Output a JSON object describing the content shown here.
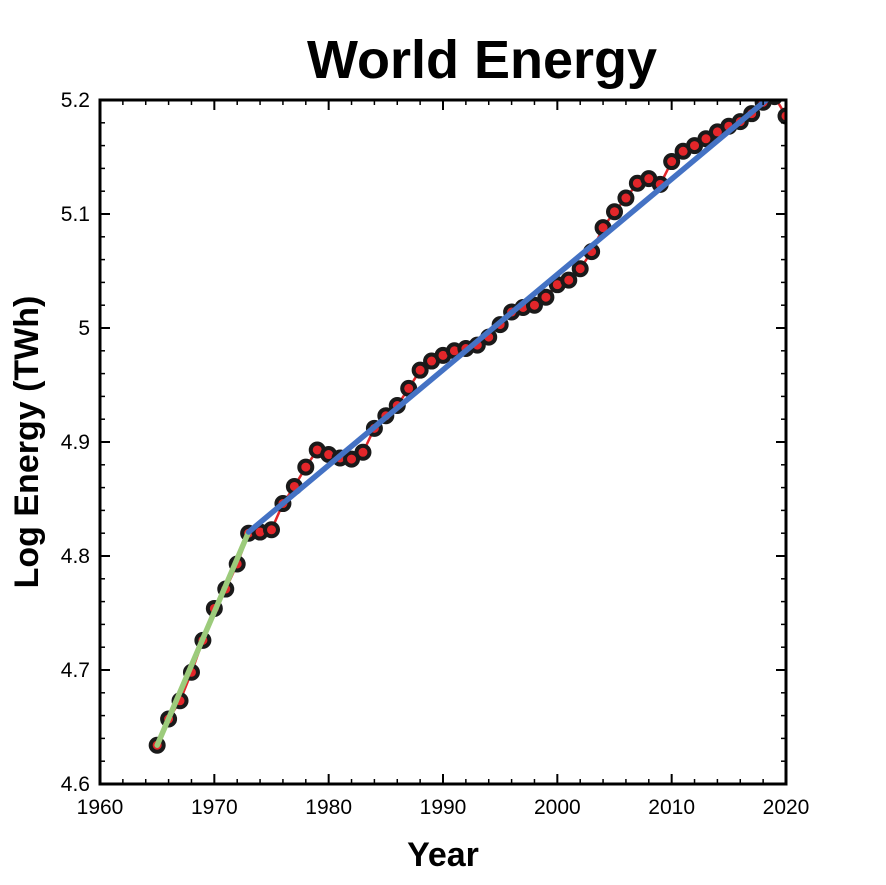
{
  "chart_data": {
    "type": "scatter",
    "title": "World Energy",
    "xlabel": "Year",
    "ylabel": "Log Energy (TWh)",
    "xlim": [
      1960,
      2020
    ],
    "ylim": [
      4.6,
      5.2
    ],
    "xticks": [
      1960,
      1970,
      1980,
      1990,
      2000,
      2010,
      2020
    ],
    "yticks": [
      4.6,
      4.7,
      4.8,
      4.9,
      5,
      5.1,
      5.2
    ],
    "xtick_labels": [
      "1960",
      "1970",
      "1980",
      "1990",
      "2000",
      "2010",
      "2020"
    ],
    "ytick_labels": [
      "4.6",
      "4.7",
      "4.8",
      "4.9",
      "5",
      "5.1",
      "5.2"
    ],
    "grid": false,
    "series": [
      {
        "x": [
          1965,
          1966,
          1967,
          1968,
          1969,
          1970,
          1971,
          1972,
          1973,
          1974,
          1975,
          1976,
          1977,
          1978,
          1979,
          1980,
          1981,
          1982,
          1983,
          1984,
          1985,
          1986,
          1987,
          1988,
          1989,
          1990,
          1991,
          1992,
          1993,
          1994,
          1995,
          1996,
          1997,
          1998,
          1999,
          2000,
          2001,
          2002,
          2003,
          2004,
          2005,
          2006,
          2007,
          2008,
          2009,
          2010,
          2011,
          2012,
          2013,
          2014,
          2015,
          2016,
          2017,
          2018,
          2019,
          2020
        ],
        "y": [
          4.634,
          4.657,
          4.673,
          4.698,
          4.726,
          4.754,
          4.771,
          4.793,
          4.82,
          4.821,
          4.823,
          4.846,
          4.861,
          4.878,
          4.893,
          4.889,
          4.886,
          4.885,
          4.891,
          4.912,
          4.923,
          4.932,
          4.947,
          4.963,
          4.971,
          4.976,
          4.98,
          4.982,
          4.985,
          4.992,
          5.003,
          5.014,
          5.018,
          5.02,
          5.027,
          5.038,
          5.042,
          5.052,
          5.067,
          5.088,
          5.102,
          5.114,
          5.127,
          5.131,
          5.126,
          5.146,
          5.155,
          5.16,
          5.166,
          5.172,
          5.177,
          5.181,
          5.188,
          5.198,
          5.203,
          5.186
        ],
        "marker_fill": "#e3262a",
        "marker_edge": "#1a1a1a",
        "line_color": "#e3262a"
      }
    ],
    "trend_lines": [
      {
        "x": [
          1965,
          1973
        ],
        "y": [
          4.634,
          4.821
        ],
        "color": "#9ccb7b"
      },
      {
        "x": [
          1973,
          2019
        ],
        "y": [
          4.821,
          5.206
        ],
        "color": "#4472c4"
      }
    ]
  }
}
